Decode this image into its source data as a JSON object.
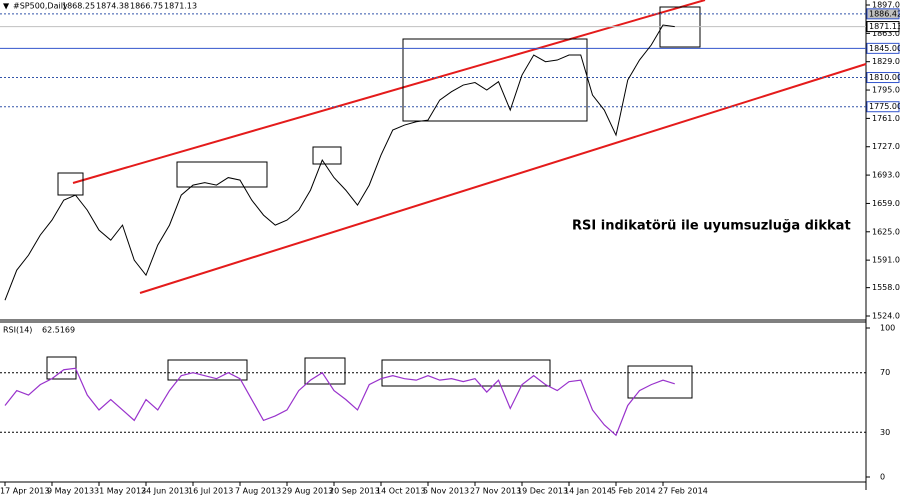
{
  "chart_data": [
    {
      "type": "line",
      "title": "#SP500,Daily",
      "ohlc": [
        1868.25,
        1874.38,
        1866.75,
        1871.13
      ],
      "categories": [
        "17 Apr 2013",
        null,
        null,
        null,
        "9 May 2013",
        null,
        null,
        null,
        "31 May 2013",
        null,
        null,
        null,
        "24 Jun 2013",
        null,
        null,
        null,
        "16 Jul 2013",
        null,
        null,
        null,
        "7 Aug 2013",
        null,
        null,
        null,
        "29 Aug 2013",
        null,
        null,
        null,
        "20 Sep 2013",
        null,
        null,
        null,
        "14 Oct 2013",
        null,
        null,
        null,
        "5 Nov 2013",
        null,
        null,
        null,
        "27 Nov 2013",
        null,
        null,
        null,
        "19 Dec 2013",
        null,
        null,
        null,
        "14 Jan 2014",
        null,
        null,
        null,
        "5 Feb 2014",
        null,
        null,
        null,
        "27 Feb 2014",
        null
      ],
      "series": [
        {
          "name": "#SP500",
          "color": "#000000",
          "values": [
            1543,
            1579,
            1597,
            1621,
            1639,
            1663,
            1669,
            1651,
            1627,
            1615,
            1633,
            1591,
            1573,
            1609,
            1633,
            1669,
            1681,
            1684,
            1681,
            1690,
            1687,
            1663,
            1645,
            1633,
            1639,
            1651,
            1675,
            1711,
            1690,
            1675,
            1657,
            1681,
            1717,
            1747,
            1753,
            1757,
            1759,
            1783,
            1793,
            1801,
            1804,
            1795,
            1805,
            1771,
            1813,
            1837,
            1829,
            1831,
            1837,
            1837,
            1789,
            1771,
            1741,
            1807,
            1831,
            1849,
            1873,
            1871.13
          ]
        }
      ],
      "ylim": [
        1524,
        1897
      ],
      "yticks": [
        {
          "value": 1897,
          "label": "1897.00"
        },
        {
          "value": 1863,
          "label": "1863.00"
        },
        {
          "value": 1829,
          "label": "1829.00"
        },
        {
          "value": 1795,
          "label": "1795.00"
        },
        {
          "value": 1761,
          "label": "1761.00"
        },
        {
          "value": 1727,
          "label": "1727.00"
        },
        {
          "value": 1693,
          "label": "1693.00"
        },
        {
          "value": 1659,
          "label": "1659.00"
        },
        {
          "value": 1625,
          "label": "1625.00"
        },
        {
          "value": 1591,
          "label": "1591.00"
        },
        {
          "value": 1558,
          "label": "1558.00"
        },
        {
          "value": 1524,
          "label": "1524.00"
        }
      ],
      "levels": [
        {
          "value": 1886.42,
          "label": "1886.42",
          "style": "dotted"
        },
        {
          "value": 1845,
          "label": "1845.00",
          "style": "solid"
        },
        {
          "value": 1810,
          "label": "1810.00",
          "style": "dotted"
        },
        {
          "value": 1775,
          "label": "1775.00",
          "style": "dotted"
        }
      ],
      "annotation": "RSI indikatörü ile uyumsuzluğa dikkat"
    },
    {
      "type": "line",
      "title": "RSI(14)",
      "last": 62.5169,
      "series": [
        {
          "name": "RSI(14)",
          "color": "#9933cc",
          "values": [
            48,
            58,
            55,
            62,
            66,
            72,
            73,
            55,
            45,
            52,
            45,
            38,
            52,
            45,
            58,
            68,
            70,
            68,
            66,
            70,
            66,
            52,
            38,
            41,
            45,
            58,
            65,
            70,
            58,
            52,
            45,
            62,
            66,
            68,
            66,
            65,
            68,
            65,
            66,
            64,
            66,
            57,
            65,
            46,
            62,
            68,
            62,
            58,
            64,
            65,
            45,
            35,
            28,
            48,
            58,
            62,
            65,
            62.5169
          ]
        }
      ],
      "ylim": [
        0,
        100
      ],
      "yticks": [
        100,
        70,
        30,
        0
      ]
    }
  ]
}
